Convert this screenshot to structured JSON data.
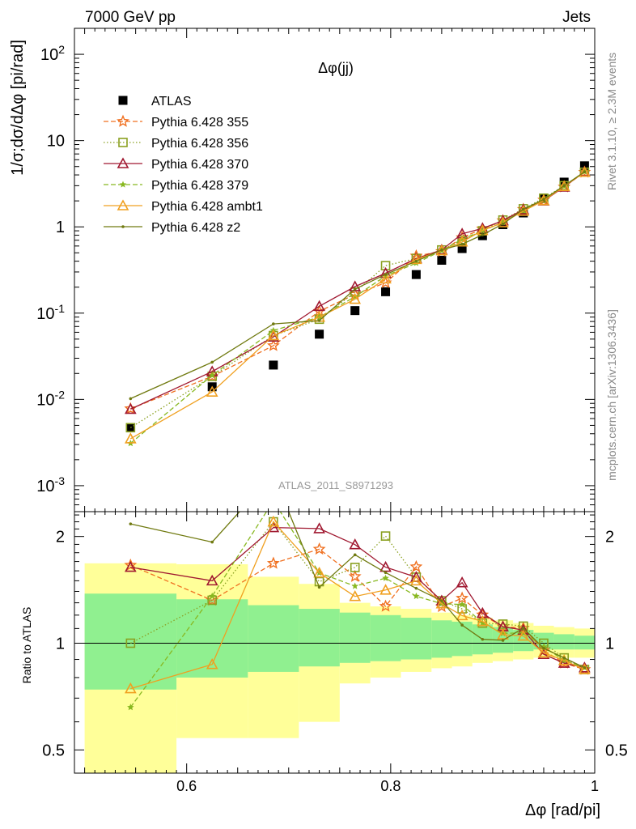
{
  "header": {
    "energy_label": "7000 GeV pp",
    "process_label": "Jets"
  },
  "side_labels": {
    "rivet": "Rivet 3.1.10, ≥ 2.3M events",
    "source": "mcplots.cern.ch [arXiv:1306.3436]"
  },
  "chart_data": {
    "type": "line",
    "title": "Δφ(jj)",
    "analysis_id": "ATLAS_2011_S8971293",
    "xlabel": "Δφ [rad/pi]",
    "ylabel": "1/σ;dσ/dΔφ [pi/rad]",
    "ratio_ylabel": "Ratio to ATLAS",
    "xlim": [
      0.49,
      1.0
    ],
    "ylim": [
      0.0005,
      200
    ],
    "yscale": "log",
    "ratio_ylim": [
      0.43,
      2.35
    ],
    "ratio_yscale": "log",
    "x_ticks": [
      "0.6",
      "0.8",
      "1"
    ],
    "y_ticks": [
      "10^-3",
      "10^-2",
      "10^-1",
      "1",
      "10",
      "10^2"
    ],
    "ratio_ticks": [
      "0.5",
      "1",
      "2"
    ],
    "legend_position": "top-left",
    "x": [
      0.545,
      0.625,
      0.685,
      0.73,
      0.765,
      0.795,
      0.825,
      0.85,
      0.87,
      0.89,
      0.91,
      0.93,
      0.95,
      0.97,
      0.99
    ],
    "series": [
      {
        "name": "ATLAS",
        "color": "#000000",
        "marker": "square-filled",
        "dash": "none",
        "values": [
          0.0047,
          0.014,
          0.025,
          0.057,
          0.107,
          0.177,
          0.28,
          0.41,
          0.56,
          0.79,
          1.06,
          1.45,
          2.15,
          3.3,
          5.1
        ]
      },
      {
        "name": "Pythia 6.428 355",
        "color": "#f07020",
        "marker": "star-open",
        "dash": "6,3",
        "values": [
          0.0078,
          0.0185,
          0.042,
          0.105,
          0.165,
          0.225,
          0.46,
          0.52,
          0.75,
          0.95,
          1.18,
          1.6,
          2.05,
          2.9,
          4.3
        ]
      },
      {
        "name": "Pythia 6.428 356",
        "color": "#8aa020",
        "marker": "square-open",
        "dash": "1.5,2.5",
        "values": [
          0.0047,
          0.0185,
          0.055,
          0.085,
          0.175,
          0.355,
          0.43,
          0.54,
          0.7,
          0.9,
          1.2,
          1.62,
          2.15,
          3.0,
          4.3
        ]
      },
      {
        "name": "Pythia 6.428 370",
        "color": "#a01830",
        "marker": "triangle-open",
        "dash": "none",
        "values": [
          0.0077,
          0.021,
          0.053,
          0.12,
          0.203,
          0.29,
          0.43,
          0.54,
          0.83,
          0.96,
          1.18,
          1.58,
          2.0,
          2.9,
          4.35
        ]
      },
      {
        "name": "Pythia 6.428 379",
        "color": "#88b820",
        "marker": "star-filled",
        "dash": "6,3",
        "values": [
          0.0031,
          0.019,
          0.063,
          0.09,
          0.155,
          0.27,
          0.38,
          0.53,
          0.72,
          0.9,
          1.13,
          1.55,
          2.1,
          2.95,
          4.35
        ]
      },
      {
        "name": "Pythia 6.428 ambt1",
        "color": "#f0a020",
        "marker": "triangle-open",
        "dash": "none",
        "values": [
          0.0035,
          0.0122,
          0.055,
          0.09,
          0.145,
          0.25,
          0.42,
          0.53,
          0.67,
          0.91,
          1.12,
          1.52,
          2.02,
          2.95,
          4.3
        ]
      },
      {
        "name": "Pythia 6.428 z2",
        "color": "#707a10",
        "marker": "dot",
        "dash": "none",
        "values": [
          0.0102,
          0.027,
          0.075,
          0.082,
          0.19,
          0.28,
          0.4,
          0.54,
          0.63,
          0.81,
          1.08,
          1.6,
          2.08,
          3.0,
          4.35
        ]
      }
    ],
    "uncertainty_bands": [
      {
        "x_low": 0.5,
        "x_high": 0.59,
        "stat_lo": 0.74,
        "stat_hi": 1.38,
        "tot_lo": 0.3,
        "tot_hi": 1.68
      },
      {
        "x_low": 0.59,
        "x_high": 0.66,
        "stat_lo": 0.8,
        "stat_hi": 1.33,
        "tot_lo": 0.54,
        "tot_hi": 1.67
      },
      {
        "x_low": 0.66,
        "x_high": 0.71,
        "stat_lo": 0.83,
        "stat_hi": 1.28,
        "tot_lo": 0.54,
        "tot_hi": 1.54
      },
      {
        "x_low": 0.71,
        "x_high": 0.75,
        "stat_lo": 0.86,
        "stat_hi": 1.25,
        "tot_lo": 0.6,
        "tot_hi": 1.47
      },
      {
        "x_low": 0.75,
        "x_high": 0.78,
        "stat_lo": 0.88,
        "stat_hi": 1.22,
        "tot_lo": 0.77,
        "tot_hi": 1.3
      },
      {
        "x_low": 0.78,
        "x_high": 0.81,
        "stat_lo": 0.89,
        "stat_hi": 1.2,
        "tot_lo": 0.8,
        "tot_hi": 1.27
      },
      {
        "x_low": 0.81,
        "x_high": 0.84,
        "stat_lo": 0.9,
        "stat_hi": 1.18,
        "tot_lo": 0.83,
        "tot_hi": 1.25
      },
      {
        "x_low": 0.84,
        "x_high": 0.86,
        "stat_lo": 0.91,
        "stat_hi": 1.16,
        "tot_lo": 0.85,
        "tot_hi": 1.22
      },
      {
        "x_low": 0.86,
        "x_high": 0.88,
        "stat_lo": 0.92,
        "stat_hi": 1.15,
        "tot_lo": 0.86,
        "tot_hi": 1.2
      },
      {
        "x_low": 0.88,
        "x_high": 0.9,
        "stat_lo": 0.93,
        "stat_hi": 1.13,
        "tot_lo": 0.88,
        "tot_hi": 1.18
      },
      {
        "x_low": 0.9,
        "x_high": 0.92,
        "stat_lo": 0.94,
        "stat_hi": 1.11,
        "tot_lo": 0.89,
        "tot_hi": 1.16
      },
      {
        "x_low": 0.92,
        "x_high": 0.94,
        "stat_lo": 0.95,
        "stat_hi": 1.09,
        "tot_lo": 0.9,
        "tot_hi": 1.14
      },
      {
        "x_low": 0.94,
        "x_high": 0.96,
        "stat_lo": 0.96,
        "stat_hi": 1.07,
        "tot_lo": 0.91,
        "tot_hi": 1.12
      },
      {
        "x_low": 0.96,
        "x_high": 0.98,
        "stat_lo": 0.96,
        "stat_hi": 1.06,
        "tot_lo": 0.91,
        "tot_hi": 1.11
      },
      {
        "x_low": 0.98,
        "x_high": 1.0,
        "stat_lo": 0.96,
        "stat_hi": 1.05,
        "tot_lo": 0.91,
        "tot_hi": 1.1
      }
    ],
    "band_colors": {
      "stat": "#90f090",
      "total": "#ffff99"
    }
  }
}
